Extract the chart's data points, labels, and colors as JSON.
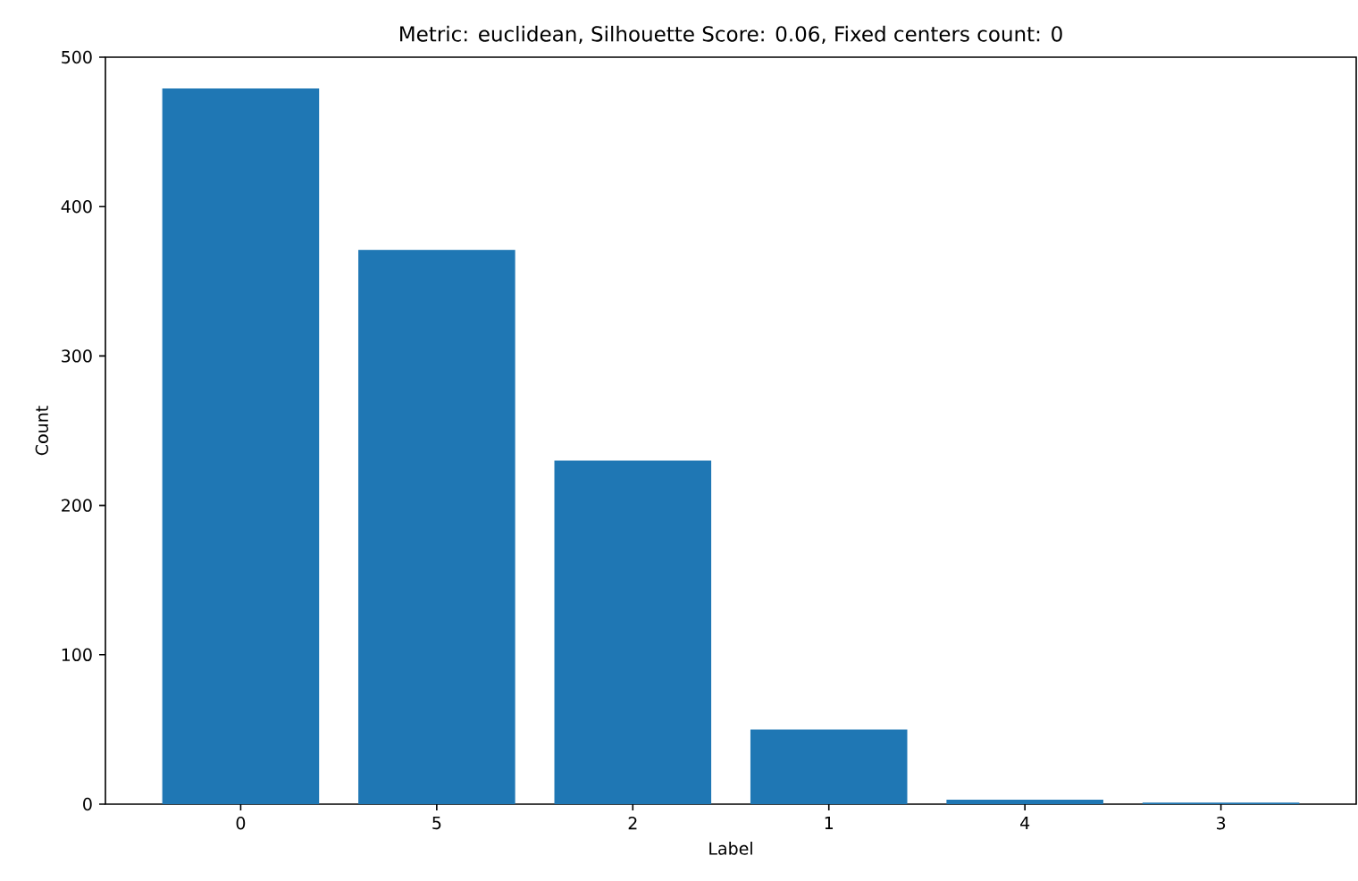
{
  "chart_data": {
    "type": "bar",
    "title": "Metric: euclidean, Silhouette Score: 0.06, Fixed centers count: 0",
    "xlabel": "Label",
    "ylabel": "Count",
    "categories": [
      "0",
      "5",
      "2",
      "1",
      "4",
      "3"
    ],
    "values": [
      479,
      371,
      230,
      50,
      3,
      1
    ],
    "color": "#1f77b4",
    "ylim": [
      0,
      500
    ],
    "yticks": [
      0,
      100,
      200,
      300,
      400,
      500
    ]
  }
}
